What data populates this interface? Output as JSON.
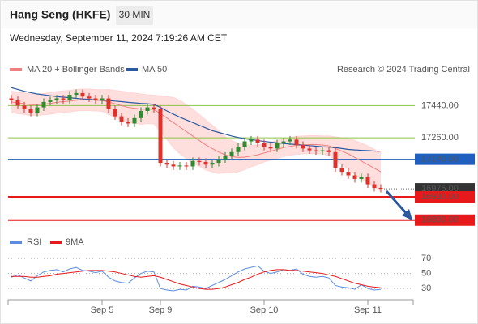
{
  "header": {
    "title": "Hang Seng (HKFE)",
    "timeframe": "30 MIN",
    "timestamp": "Wednesday, September 11, 2024 7:19:26 AM CET"
  },
  "chart_data": [
    {
      "type": "candlestick",
      "source": "Research © 2024 Trading Central",
      "categories": [
        null,
        null,
        null,
        null,
        null,
        null,
        null,
        null,
        null,
        null,
        null,
        null,
        null,
        null,
        "Sep 5",
        null,
        null,
        null,
        null,
        null,
        null,
        null,
        null,
        "Sep 9",
        null,
        null,
        null,
        null,
        null,
        null,
        null,
        null,
        null,
        null,
        null,
        null,
        null,
        null,
        null,
        "Sep 10",
        null,
        null,
        null,
        null,
        null,
        null,
        null,
        null,
        null,
        null,
        null,
        null,
        null,
        null,
        null,
        "Sep 11",
        null,
        null
      ],
      "open": [
        17480,
        17470,
        17440,
        17420,
        17400,
        17430,
        17460,
        17470,
        17480,
        17470,
        17500,
        17510,
        17490,
        17480,
        17470,
        17480,
        17420,
        17380,
        17350,
        17340,
        17370,
        17410,
        17430,
        17420,
        17120,
        17110,
        17100,
        17105,
        17100,
        17130,
        17125,
        17110,
        17120,
        17140,
        17160,
        17180,
        17210,
        17240,
        17250,
        17230,
        17210,
        17200,
        17230,
        17240,
        17250,
        17220,
        17200,
        17190,
        17185,
        17190,
        17180,
        17090,
        17070,
        17050,
        17030,
        17040,
        17000,
        16980
      ],
      "high": [
        17500,
        17490,
        17460,
        17440,
        17450,
        17480,
        17490,
        17500,
        17500,
        17520,
        17530,
        17530,
        17510,
        17500,
        17500,
        17500,
        17440,
        17400,
        17370,
        17390,
        17430,
        17450,
        17450,
        17440,
        17140,
        17130,
        17125,
        17125,
        17150,
        17150,
        17145,
        17140,
        17160,
        17180,
        17200,
        17230,
        17260,
        17270,
        17270,
        17250,
        17230,
        17250,
        17260,
        17270,
        17270,
        17240,
        17220,
        17210,
        17210,
        17210,
        17200,
        17110,
        17090,
        17070,
        17060,
        17060,
        17020,
        17000
      ],
      "low": [
        17450,
        17420,
        17400,
        17380,
        17380,
        17410,
        17440,
        17450,
        17450,
        17450,
        17480,
        17470,
        17460,
        17450,
        17450,
        17400,
        17360,
        17330,
        17320,
        17320,
        17350,
        17390,
        17400,
        17100,
        17090,
        17080,
        17080,
        17080,
        17080,
        17105,
        17090,
        17090,
        17100,
        17120,
        17140,
        17160,
        17190,
        17220,
        17210,
        17190,
        17180,
        17180,
        17210,
        17220,
        17200,
        17180,
        17170,
        17165,
        17165,
        17160,
        17070,
        17050,
        17030,
        17010,
        17010,
        16980,
        16960,
        16955
      ],
      "close": [
        17470,
        17440,
        17420,
        17400,
        17430,
        17460,
        17470,
        17480,
        17470,
        17500,
        17510,
        17490,
        17480,
        17470,
        17480,
        17420,
        17380,
        17350,
        17340,
        17370,
        17410,
        17430,
        17420,
        17120,
        17110,
        17100,
        17105,
        17100,
        17130,
        17125,
        17110,
        17120,
        17140,
        17160,
        17180,
        17210,
        17240,
        17250,
        17230,
        17210,
        17200,
        17230,
        17240,
        17250,
        17220,
        17200,
        17190,
        17185,
        17190,
        17180,
        17090,
        17070,
        17050,
        17030,
        17040,
        17000,
        16980,
        16975
      ],
      "up_color": "#2e8b2e",
      "down_color": "#e0302a",
      "series": [
        {
          "name": "MA 20 + Bollinger Bands",
          "color": "#f08080",
          "band_color": "#ffd6d6",
          "values": [
            17460,
            17455,
            17450,
            17445,
            17445,
            17448,
            17452,
            17458,
            17462,
            17465,
            17470,
            17472,
            17472,
            17470,
            17468,
            17460,
            17450,
            17440,
            17430,
            17425,
            17420,
            17420,
            17418,
            17395,
            17370,
            17345,
            17320,
            17295,
            17270,
            17245,
            17220,
            17200,
            17180,
            17165,
            17155,
            17150,
            17152,
            17158,
            17165,
            17175,
            17185,
            17195,
            17205,
            17212,
            17218,
            17220,
            17222,
            17222,
            17220,
            17215,
            17200,
            17185,
            17170,
            17150,
            17130,
            17110,
            17090,
            17070
          ],
          "upper": [
            17520,
            17515,
            17510,
            17505,
            17505,
            17508,
            17512,
            17518,
            17522,
            17525,
            17530,
            17532,
            17532,
            17530,
            17528,
            17530,
            17525,
            17520,
            17515,
            17510,
            17505,
            17500,
            17498,
            17495,
            17490,
            17485,
            17470,
            17445,
            17420,
            17390,
            17360,
            17330,
            17300,
            17265,
            17245,
            17230,
            17222,
            17218,
            17220,
            17225,
            17235,
            17245,
            17255,
            17262,
            17268,
            17270,
            17272,
            17272,
            17270,
            17270,
            17265,
            17260,
            17255,
            17245,
            17230,
            17215,
            17195,
            17175
          ],
          "lower": [
            17400,
            17395,
            17390,
            17385,
            17385,
            17388,
            17392,
            17398,
            17402,
            17405,
            17410,
            17412,
            17412,
            17410,
            17408,
            17390,
            17375,
            17360,
            17345,
            17340,
            17335,
            17340,
            17338,
            17295,
            17250,
            17205,
            17170,
            17145,
            17120,
            17100,
            17080,
            17070,
            17060,
            17065,
            17065,
            17070,
            17082,
            17098,
            17110,
            17125,
            17135,
            17145,
            17155,
            17162,
            17168,
            17170,
            17172,
            17172,
            17170,
            17160,
            17135,
            17110,
            17085,
            17055,
            17030,
            17005,
            16985,
            16965
          ]
        },
        {
          "name": "MA 50",
          "color": "#2b5aa0",
          "values": [
            17540,
            17530,
            17520,
            17512,
            17505,
            17500,
            17495,
            17490,
            17487,
            17484,
            17480,
            17477,
            17475,
            17472,
            17470,
            17468,
            17465,
            17462,
            17458,
            17455,
            17452,
            17450,
            17446,
            17430,
            17410,
            17392,
            17375,
            17360,
            17345,
            17330,
            17315,
            17300,
            17290,
            17280,
            17270,
            17262,
            17255,
            17250,
            17245,
            17240,
            17236,
            17232,
            17228,
            17225,
            17222,
            17219,
            17216,
            17213,
            17210,
            17208,
            17205,
            17200,
            17195,
            17192,
            17190,
            17188,
            17186,
            17185
          ]
        }
      ],
      "levels": [
        {
          "value": 17440,
          "label": "17440.00",
          "color": "#8bc34a",
          "text_color": "#4c9a1a",
          "kind": "text"
        },
        {
          "value": 17260,
          "label": "17260.00",
          "color": "#8bc34a",
          "text_color": "#4c9a1a",
          "kind": "text"
        },
        {
          "value": 17140,
          "label": "17140.00",
          "color": "#1f5fbf",
          "text_color": "#ffffff",
          "kind": "box"
        },
        {
          "value": 16975,
          "label": "16975.00",
          "color": "#333333",
          "text_color": "#ffffff",
          "kind": "dotted-box"
        },
        {
          "value": 16930,
          "label": "16930.00",
          "color": "#e8191b",
          "text_color": "#ffffff",
          "kind": "box"
        },
        {
          "value": 16800,
          "label": "16800.00",
          "color": "#e8191b",
          "text_color": "#ffffff",
          "kind": "box"
        }
      ],
      "ylim": [
        16740,
        17600
      ]
    },
    {
      "type": "line",
      "series": [
        {
          "name": "RSI",
          "color": "#5b8de0",
          "values": [
            45,
            48,
            44,
            40,
            47,
            52,
            54,
            55,
            52,
            56,
            58,
            54,
            53,
            51,
            53,
            45,
            40,
            38,
            37,
            44,
            50,
            53,
            52,
            30,
            28,
            27,
            29,
            28,
            33,
            32,
            30,
            34,
            38,
            42,
            47,
            52,
            56,
            58,
            60,
            53,
            50,
            52,
            55,
            54,
            56,
            49,
            46,
            45,
            46,
            44,
            34,
            32,
            31,
            29,
            35,
            30,
            28,
            29
          ]
        },
        {
          "name": "9MA",
          "color": "#e8191b",
          "values": [
            46,
            46,
            46,
            45,
            45,
            46,
            47,
            49,
            50,
            51,
            52,
            53,
            54,
            54,
            54,
            53,
            52,
            50,
            48,
            46,
            45,
            46,
            47,
            45,
            42,
            39,
            36,
            34,
            32,
            30,
            29,
            29,
            30,
            32,
            35,
            38,
            42,
            45,
            49,
            52,
            54,
            55,
            55,
            54,
            54,
            53,
            52,
            51,
            50,
            48,
            46,
            43,
            40,
            37,
            35,
            33,
            32,
            31
          ]
        }
      ],
      "ylim": [
        13,
        85
      ],
      "yticks": [
        70,
        50,
        30
      ],
      "grid": true
    }
  ]
}
